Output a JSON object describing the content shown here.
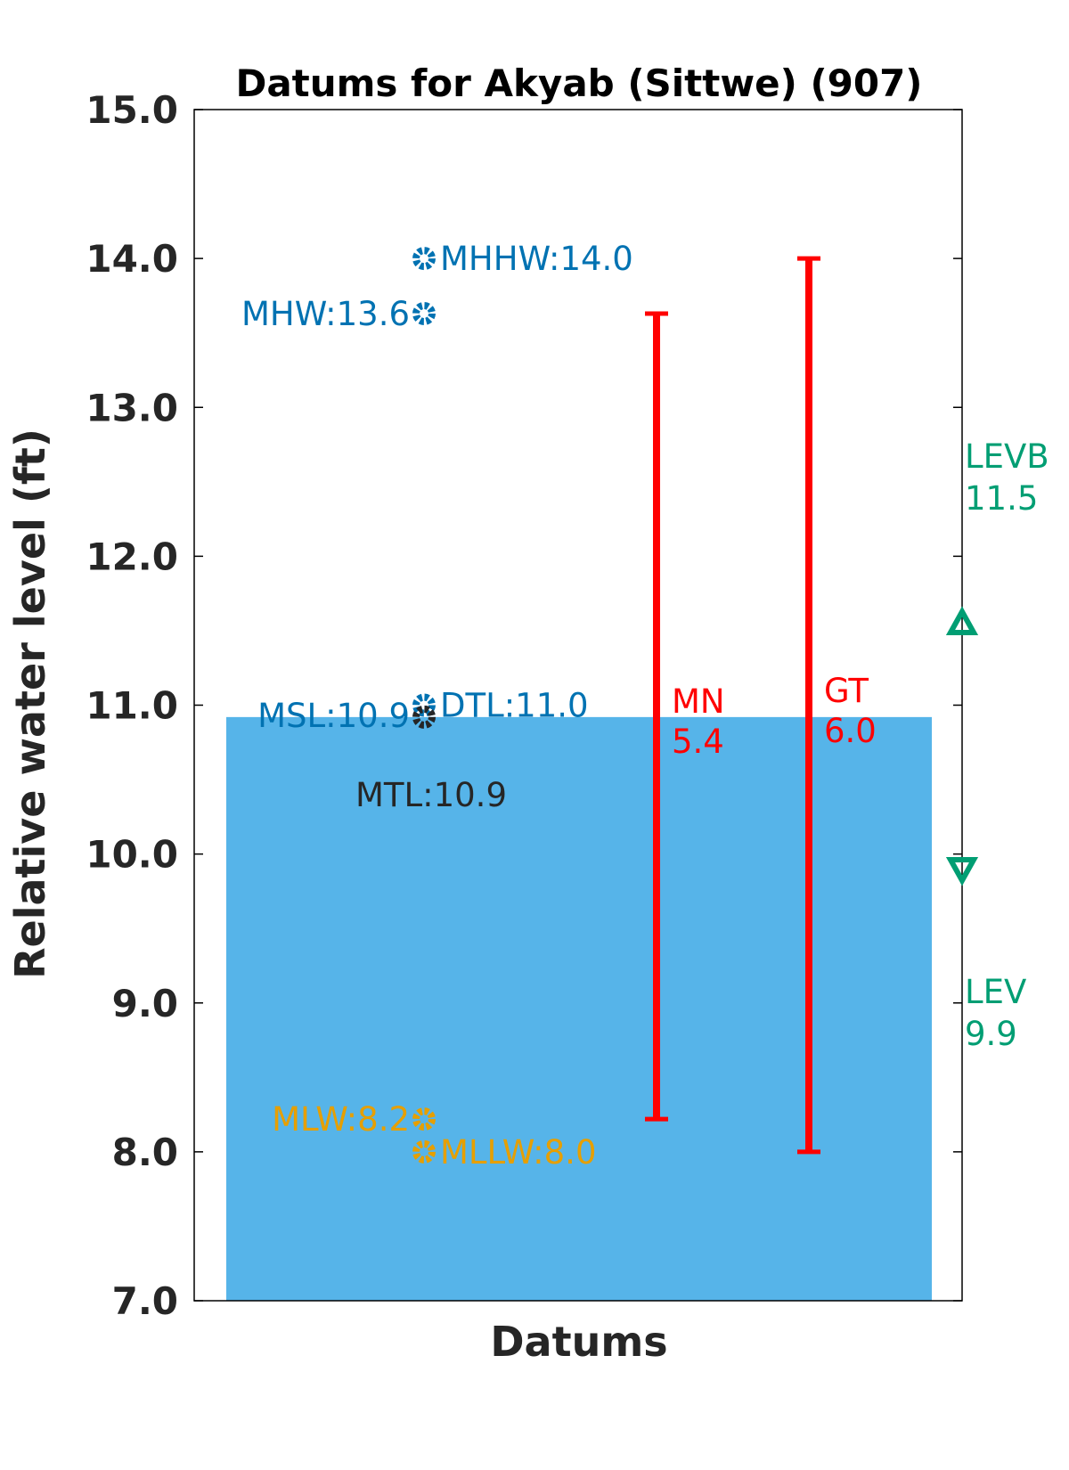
{
  "chart_data": {
    "type": "scatter",
    "title": "Datums for Akyab (Sittwe) (907)",
    "xlabel": "Datums",
    "ylabel": "Relative water level (ft)",
    "ylim": [
      7.0,
      15.0
    ],
    "yticks": [
      "7.0",
      "8.0",
      "9.0",
      "10.0",
      "11.0",
      "12.0",
      "13.0",
      "14.0",
      "15.0"
    ],
    "grid": false,
    "water_fill": {
      "top": 10.92,
      "bottom": 7.0,
      "color": "#56b4e9"
    },
    "datums": [
      {
        "name": "MHHW",
        "value": 14.0,
        "label": "MHHW:14.0",
        "color": "#0072b2",
        "label_side": "right"
      },
      {
        "name": "MHW",
        "value": 13.63,
        "label": "MHW:13.6",
        "color": "#0072b2",
        "label_side": "left"
      },
      {
        "name": "DTL",
        "value": 11.0,
        "label": "DTL:11.0",
        "color": "#0072b2",
        "label_side": "right"
      },
      {
        "name": "MSL",
        "value": 10.92,
        "label": "MSL:10.9",
        "color": "#0072b2",
        "label_side": "left"
      },
      {
        "name": "MTL",
        "value": 10.92,
        "label": "MTL:10.9",
        "color": "#262626",
        "label_side": "below"
      },
      {
        "name": "MLW",
        "value": 8.22,
        "label": "MLW:8.2",
        "color": "#e69f00",
        "label_side": "left"
      },
      {
        "name": "MLLW",
        "value": 8.0,
        "label": "MLLW:8.0",
        "color": "#e69f00",
        "label_side": "right"
      }
    ],
    "ranges": [
      {
        "name": "MN",
        "low": 8.22,
        "high": 13.63,
        "label_name": "MN",
        "label_value": "5.4",
        "color": "#ff0000"
      },
      {
        "name": "GT",
        "low": 8.0,
        "high": 14.0,
        "label_name": "GT",
        "label_value": "6.0",
        "color": "#ff0000"
      }
    ],
    "extremes": [
      {
        "name": "LEVB",
        "value": 11.55,
        "label_name": "LEVB",
        "label_value": "11.5",
        "marker": "triangle-up",
        "color": "#009e73"
      },
      {
        "name": "LEV",
        "value": 9.9,
        "label_name": "LEV",
        "label_value": "9.9",
        "marker": "triangle-down",
        "color": "#009e73"
      }
    ]
  }
}
